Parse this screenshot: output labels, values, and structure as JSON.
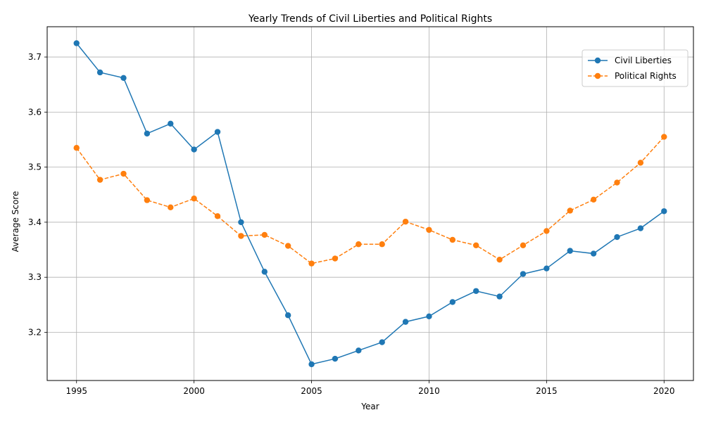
{
  "chart_data": {
    "type": "line",
    "title": "Yearly Trends of Civil Liberties and Political Rights",
    "xlabel": "Year",
    "ylabel": "Average Score",
    "x": [
      1995,
      1996,
      1997,
      1998,
      1999,
      2000,
      2001,
      2002,
      2003,
      2004,
      2005,
      2006,
      2007,
      2008,
      2009,
      2010,
      2011,
      2012,
      2013,
      2014,
      2015,
      2016,
      2017,
      2018,
      2019,
      2020
    ],
    "xlim": [
      1993.75,
      2021.25
    ],
    "ylim": [
      3.1125,
      3.755
    ],
    "xticks": [
      1995,
      2000,
      2005,
      2010,
      2015,
      2020
    ],
    "yticks": [
      3.2,
      3.3,
      3.4,
      3.5,
      3.6,
      3.7
    ],
    "ytick_labels": [
      "3.2",
      "3.3",
      "3.4",
      "3.5",
      "3.6",
      "3.7"
    ],
    "grid": true,
    "legend_position": "top-right",
    "series": [
      {
        "name": "Civil Liberties",
        "color": "#1f77b4",
        "line_style": "solid",
        "marker": "circle",
        "values": [
          3.725,
          3.672,
          3.662,
          3.561,
          3.579,
          3.532,
          3.564,
          3.4,
          3.31,
          3.231,
          3.142,
          3.152,
          3.167,
          3.182,
          3.219,
          3.229,
          3.255,
          3.275,
          3.265,
          3.306,
          3.316,
          3.348,
          3.343,
          3.373,
          3.389,
          3.42
        ]
      },
      {
        "name": "Political Rights",
        "color": "#ff7f0e",
        "line_style": "dashed",
        "marker": "circle",
        "values": [
          3.535,
          3.477,
          3.488,
          3.44,
          3.427,
          3.443,
          3.411,
          3.375,
          3.377,
          3.357,
          3.325,
          3.334,
          3.36,
          3.36,
          3.401,
          3.386,
          3.368,
          3.358,
          3.332,
          3.358,
          3.384,
          3.421,
          3.441,
          3.472,
          3.508,
          3.555
        ]
      }
    ]
  }
}
